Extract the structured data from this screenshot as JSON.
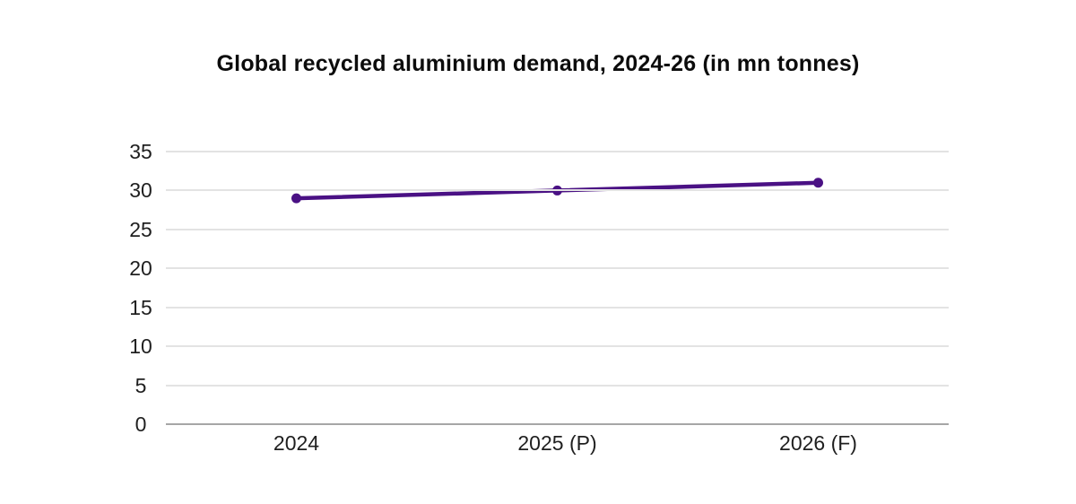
{
  "chart_data": {
    "type": "line",
    "title": "Global recycled aluminium demand, 2024-26 (in mn tonnes)",
    "categories": [
      "2024",
      "2025 (P)",
      "2026 (F)"
    ],
    "values": [
      29,
      30,
      31
    ],
    "xlabel": "",
    "ylabel": "",
    "ylim": [
      0,
      35
    ],
    "ytick_step": 5,
    "yticks": [
      0,
      5,
      10,
      15,
      20,
      25,
      30,
      35
    ],
    "grid": "horizontal",
    "legend": "none",
    "line_color": "#4a1184",
    "marker_color": "#4a1184",
    "gridline_color": "#e3e3e3",
    "baseline_color": "#a6a6a6",
    "axis_text_color": "#1f1f1f",
    "title_color": "#0c0c0c",
    "background_color": "#ffffff"
  }
}
